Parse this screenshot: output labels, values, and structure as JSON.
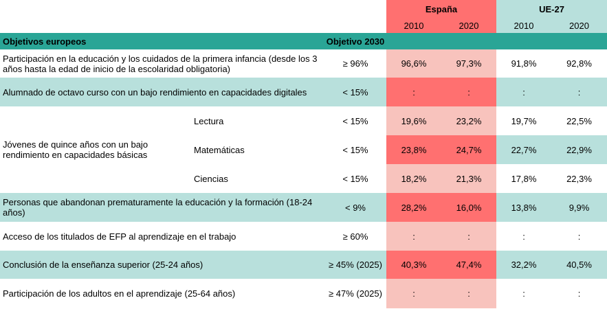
{
  "header": {
    "spain": "España",
    "eu": "UE-27",
    "years": [
      "2010",
      "2020",
      "2010",
      "2020"
    ]
  },
  "section": {
    "title": "Objetivos europeos",
    "target_label": "Objetivo 2030"
  },
  "rows": [
    {
      "label": "Participación en la educación y los cuidados de la primera infancia (desde los 3 años hasta la edad de inicio de la escolaridad obligatoria)",
      "target": "≥ 96%",
      "values": [
        "96,6%",
        "97,3%",
        "91,8%",
        "92,8%"
      ]
    },
    {
      "label": "Alumnado de octavo curso con un bajo rendimiento en capacidades digitales",
      "target": "< 15%",
      "values": [
        ":",
        ":",
        ":",
        ":"
      ]
    },
    {
      "label": "Jóvenes de quince años con un bajo rendimiento en capacidades básicas",
      "subrows": [
        {
          "sub": "Lectura",
          "target": "< 15%",
          "values": [
            "19,6%",
            "23,2%",
            "19,7%",
            "22,5%"
          ]
        },
        {
          "sub": "Matemáticas",
          "target": "< 15%",
          "values": [
            "23,8%",
            "24,7%",
            "22,7%",
            "22,9%"
          ]
        },
        {
          "sub": "Ciencias",
          "target": "< 15%",
          "values": [
            "18,2%",
            "21,3%",
            "17,8%",
            "22,3%"
          ]
        }
      ]
    },
    {
      "label": "Personas que abandonan prematuramente la educación y la formación (18-24 años)",
      "target": "< 9%",
      "values": [
        "28,2%",
        "16,0%",
        "13,8%",
        "9,9%"
      ]
    },
    {
      "label": "Acceso de los titulados de EFP al aprendizaje en el trabajo",
      "target": "≥ 60%",
      "values": [
        ":",
        ":",
        ":",
        ":"
      ]
    },
    {
      "label": "Conclusión de la enseñanza superior (25-24 años)",
      "target": "≥ 45% (2025)",
      "values": [
        "40,3%",
        "47,4%",
        "32,2%",
        "40,5%"
      ]
    },
    {
      "label": "Participación de los adultos en el aprendizaje (25-64 años)",
      "target": "≥ 47% (2025)",
      "values": [
        ":",
        ":",
        ":",
        ":"
      ]
    }
  ],
  "colors": {
    "teal": "#2aa596",
    "light_teal": "#b8e0dc",
    "spain_dark": "#ff7070",
    "spain_light": "#f8c3bd"
  }
}
